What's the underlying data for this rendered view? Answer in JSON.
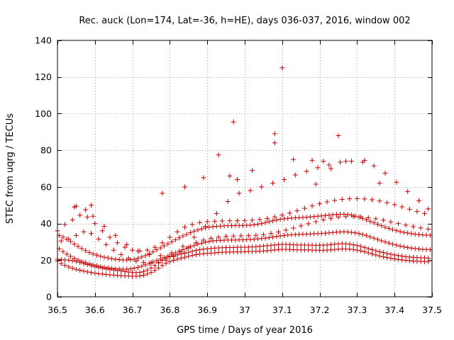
{
  "chart_data": {
    "type": "scatter",
    "title": "Rec. auck (Lon=174, Lat=-36, h=HE), days 036-037, 2016, window 002",
    "xlabel": "GPS time / Days of year 2016",
    "ylabel": "STEC from uqrg / TECUs",
    "xlim": [
      36.5,
      37.5
    ],
    "ylim": [
      0,
      140
    ],
    "xticks": [
      36.5,
      36.6,
      36.7,
      36.8,
      36.9,
      37.0,
      37.1,
      37.2,
      37.3,
      37.4,
      37.5
    ],
    "xtick_labels": [
      "36.5",
      "36.6",
      "36.7",
      "36.8",
      "36.9",
      "37",
      "37.1",
      "37.2",
      "37.3",
      "37.4",
      "37.5"
    ],
    "yticks": [
      0,
      20,
      40,
      60,
      80,
      100,
      120,
      140
    ],
    "ytick_labels": [
      "0",
      "20",
      "40",
      "60",
      "80",
      "100",
      "120",
      "140"
    ],
    "grid": true,
    "marker": "+",
    "color": "#cc0000",
    "series": [
      {
        "name": "STEC",
        "x": [
          36.5,
          36.51,
          36.52,
          36.53,
          36.54,
          36.55,
          36.56,
          36.57,
          36.58,
          36.59,
          36.6,
          36.61,
          36.62,
          36.63,
          36.64,
          36.65,
          36.66,
          36.67,
          36.68,
          36.69,
          36.7,
          36.71,
          36.72,
          36.73,
          36.74,
          36.75,
          36.76,
          36.77,
          36.78,
          36.79,
          36.8,
          36.81,
          36.82,
          36.83,
          36.84,
          36.85,
          36.86,
          36.87,
          36.88,
          36.89,
          36.9,
          36.91,
          36.92,
          36.93,
          36.94,
          36.95,
          36.96,
          36.97,
          36.98,
          36.99,
          36.5,
          36.51,
          36.52,
          36.53,
          36.54,
          36.55,
          36.56,
          36.57,
          36.58,
          36.59,
          36.6,
          36.61,
          36.62,
          36.63,
          36.64,
          36.65,
          36.66,
          36.67,
          36.68,
          36.69,
          36.7,
          36.71,
          36.72,
          36.73,
          36.74,
          36.75,
          36.76,
          36.77,
          36.78,
          36.79,
          36.8,
          36.81,
          36.82,
          36.83,
          36.84,
          36.85,
          36.86,
          36.87,
          36.88,
          36.89,
          36.9,
          36.91,
          36.92,
          36.93,
          36.94,
          36.95,
          36.96,
          36.97,
          36.98,
          36.99,
          36.505,
          36.515,
          36.525,
          36.535,
          36.545,
          36.555,
          36.565,
          36.575,
          36.585,
          36.595,
          36.605,
          36.615,
          36.625,
          36.635,
          36.645,
          36.655,
          36.665,
          36.675,
          36.685,
          36.695,
          36.705,
          36.715,
          36.725,
          36.735,
          36.745,
          36.755,
          36.765,
          36.775,
          36.785,
          36.795,
          36.805,
          36.815,
          36.825,
          36.835,
          36.845,
          36.855,
          36.865,
          36.875,
          36.885,
          36.895,
          36.905,
          36.915,
          36.925,
          36.935,
          36.945,
          36.955,
          36.965,
          36.975,
          36.985,
          36.995,
          36.505,
          36.515,
          36.525,
          36.535,
          36.545,
          36.555,
          36.565,
          36.575,
          36.585,
          36.595,
          36.605,
          36.615,
          36.625,
          36.635,
          36.645,
          36.655,
          36.665,
          36.675,
          36.685,
          36.695,
          36.705,
          36.715,
          36.725,
          36.735,
          36.745,
          36.755,
          36.765,
          36.775,
          36.785,
          36.795,
          36.805,
          36.815,
          36.825,
          36.835,
          36.845,
          36.855,
          36.865,
          36.875,
          36.885,
          36.895,
          36.905,
          36.915,
          36.925,
          36.935,
          36.945,
          36.955,
          36.965,
          36.975,
          36.985,
          36.995,
          36.5,
          36.52,
          36.54,
          36.56,
          36.58,
          36.6,
          36.62,
          36.64,
          36.66,
          36.68,
          36.7,
          36.72,
          36.74,
          36.76,
          36.78,
          36.8,
          36.82,
          36.84,
          36.86,
          36.88,
          36.9,
          36.92,
          36.94,
          36.96,
          36.98,
          36.51,
          36.53,
          36.55,
          36.57,
          36.59,
          36.61,
          36.63,
          36.65,
          36.67,
          36.69,
          36.71,
          36.73,
          36.75,
          36.77,
          36.79,
          36.81,
          36.83,
          36.85,
          36.87,
          36.89,
          36.91,
          36.93,
          36.95,
          36.97,
          36.99,
          36.545,
          36.575,
          36.595,
          36.625,
          36.655,
          36.685,
          36.715,
          36.745,
          36.775,
          36.805,
          36.835,
          36.865,
          36.895,
          36.925,
          36.955,
          36.985,
          36.55,
          36.59,
          36.78,
          36.84,
          36.89,
          36.93,
          36.96,
          36.97,
          36.98,
          37.0,
          37.01,
          37.02,
          37.03,
          37.04,
          37.05,
          37.06,
          37.07,
          37.08,
          37.09,
          37.1,
          37.11,
          37.12,
          37.13,
          37.14,
          37.15,
          37.16,
          37.17,
          37.18,
          37.19,
          37.2,
          37.21,
          37.22,
          37.23,
          37.24,
          37.25,
          37.26,
          37.27,
          37.28,
          37.29,
          37.3,
          37.31,
          37.32,
          37.33,
          37.34,
          37.35,
          37.36,
          37.37,
          37.38,
          37.39,
          37.4,
          37.41,
          37.42,
          37.43,
          37.44,
          37.45,
          37.46,
          37.47,
          37.48,
          37.49,
          37.0,
          37.01,
          37.02,
          37.03,
          37.04,
          37.05,
          37.06,
          37.07,
          37.08,
          37.09,
          37.1,
          37.11,
          37.12,
          37.13,
          37.14,
          37.15,
          37.16,
          37.17,
          37.18,
          37.19,
          37.2,
          37.21,
          37.22,
          37.23,
          37.24,
          37.25,
          37.26,
          37.27,
          37.28,
          37.29,
          37.3,
          37.31,
          37.32,
          37.33,
          37.34,
          37.35,
          37.36,
          37.37,
          37.38,
          37.39,
          37.4,
          37.41,
          37.42,
          37.43,
          37.44,
          37.45,
          37.46,
          37.47,
          37.48,
          37.49,
          37.005,
          37.015,
          37.025,
          37.035,
          37.045,
          37.055,
          37.065,
          37.075,
          37.085,
          37.095,
          37.105,
          37.115,
          37.125,
          37.135,
          37.145,
          37.155,
          37.165,
          37.175,
          37.185,
          37.195,
          37.205,
          37.215,
          37.225,
          37.235,
          37.245,
          37.255,
          37.265,
          37.275,
          37.285,
          37.295,
          37.305,
          37.315,
          37.325,
          37.335,
          37.345,
          37.355,
          37.365,
          37.375,
          37.385,
          37.395,
          37.405,
          37.415,
          37.425,
          37.435,
          37.445,
          37.455,
          37.465,
          37.475,
          37.485,
          37.495,
          37.005,
          37.015,
          37.025,
          37.035,
          37.045,
          37.055,
          37.065,
          37.075,
          37.085,
          37.095,
          37.105,
          37.115,
          37.125,
          37.135,
          37.145,
          37.155,
          37.165,
          37.175,
          37.185,
          37.195,
          37.205,
          37.215,
          37.225,
          37.235,
          37.245,
          37.255,
          37.265,
          37.275,
          37.285,
          37.295,
          37.305,
          37.315,
          37.325,
          37.335,
          37.345,
          37.355,
          37.365,
          37.375,
          37.385,
          37.395,
          37.405,
          37.415,
          37.425,
          37.435,
          37.445,
          37.455,
          37.465,
          37.475,
          37.485,
          37.495,
          37.0,
          37.02,
          37.04,
          37.06,
          37.08,
          37.1,
          37.12,
          37.14,
          37.16,
          37.18,
          37.2,
          37.22,
          37.24,
          37.26,
          37.28,
          37.3,
          37.32,
          37.34,
          37.36,
          37.38,
          37.4,
          37.42,
          37.44,
          37.46,
          37.48,
          37.01,
          37.03,
          37.05,
          37.07,
          37.09,
          37.11,
          37.13,
          37.15,
          37.17,
          37.19,
          37.21,
          37.23,
          37.25,
          37.27,
          37.29,
          37.31,
          37.33,
          37.35,
          37.37,
          37.39,
          37.41,
          37.43,
          37.45,
          37.47,
          37.49,
          37.015,
          37.045,
          37.075,
          37.105,
          37.135,
          37.165,
          37.195,
          37.225,
          37.255,
          37.285,
          37.315,
          37.345,
          37.375,
          37.405,
          37.435,
          37.465,
          37.02,
          37.08,
          37.08,
          37.1,
          37.13,
          37.18,
          37.19,
          37.21,
          37.23,
          37.25,
          37.27,
          37.32,
          37.36,
          37.49
        ],
        "y": [
          19.5,
          18.2,
          17.2,
          16.3,
          15.6,
          15.0,
          14.5,
          14.0,
          13.6,
          13.2,
          12.9,
          12.6,
          12.4,
          12.2,
          12.0,
          11.9,
          11.7,
          11.5,
          11.4,
          11.3,
          11.2,
          11.2,
          11.4,
          11.8,
          12.4,
          13.3,
          14.4,
          15.7,
          17.1,
          18.3,
          19.2,
          19.9,
          20.5,
          21.1,
          21.6,
          22.1,
          22.6,
          23.0,
          23.3,
          23.5,
          23.7,
          23.9,
          24.0,
          24.2,
          24.3,
          24.4,
          24.4,
          24.5,
          24.5,
          24.6,
          20.5,
          20.3,
          20.1,
          20.0,
          19.7,
          19.3,
          18.8,
          18.2,
          17.6,
          17.1,
          16.6,
          16.1,
          15.7,
          15.3,
          15.0,
          14.7,
          14.4,
          14.1,
          13.8,
          13.5,
          13.3,
          13.2,
          13.3,
          13.8,
          14.6,
          15.7,
          17.0,
          18.5,
          19.9,
          21.0,
          21.8,
          22.4,
          22.9,
          23.4,
          23.8,
          24.3,
          24.8,
          25.3,
          25.7,
          26.0,
          26.2,
          26.4,
          26.6,
          26.7,
          26.8,
          26.9,
          26.9,
          26.9,
          27.0,
          27.0,
          26.2,
          24.7,
          23.3,
          22.1,
          21.0,
          20.1,
          19.3,
          18.6,
          18.0,
          17.4,
          16.9,
          16.5,
          16.1,
          15.8,
          15.5,
          15.3,
          15.2,
          15.1,
          15.1,
          15.3,
          15.6,
          16.1,
          16.7,
          17.4,
          18.2,
          19.0,
          19.8,
          20.6,
          21.4,
          22.2,
          23.1,
          24.0,
          24.9,
          25.7,
          26.5,
          27.3,
          28.0,
          28.7,
          29.3,
          29.8,
          30.2,
          30.5,
          30.7,
          30.8,
          30.9,
          31.0,
          31.0,
          31.0,
          31.1,
          31.1,
          33.5,
          32.6,
          31.4,
          30.2,
          28.8,
          27.5,
          26.3,
          25.2,
          24.2,
          23.4,
          22.7,
          22.1,
          21.6,
          21.2,
          20.8,
          20.5,
          20.3,
          20.1,
          20.1,
          20.2,
          20.5,
          21.0,
          21.7,
          22.5,
          23.5,
          24.5,
          25.6,
          26.7,
          27.8,
          28.9,
          30.0,
          31.1,
          32.2,
          33.2,
          34.1,
          35.0,
          35.8,
          36.5,
          37.1,
          37.6,
          38.0,
          38.3,
          38.5,
          38.6,
          38.7,
          38.8,
          38.8,
          38.9,
          38.9,
          38.9,
          36.0,
          39.5,
          42.0,
          44.5,
          43.5,
          40.0,
          36.0,
          32.5,
          29.5,
          27.0,
          25.5,
          25.0,
          25.5,
          27.0,
          29.5,
          32.5,
          35.5,
          38.0,
          39.5,
          40.5,
          41.0,
          41.2,
          41.4,
          41.5,
          41.5,
          30.5,
          31.5,
          33.5,
          35.5,
          34.5,
          31.5,
          28.5,
          25.5,
          23.0,
          21.0,
          19.5,
          18.7,
          18.5,
          18.8,
          20.0,
          22.0,
          24.5,
          27.0,
          29.5,
          31.0,
          32.0,
          32.6,
          33.0,
          33.2,
          33.3,
          49.0,
          47.5,
          44.0,
          38.5,
          33.5,
          28.5,
          25.0,
          23.0,
          22.5,
          24.0,
          27.5,
          32.5,
          38.5,
          45.5,
          52.0,
          56.5,
          49.5,
          50.0,
          56.5,
          60.0,
          65.0,
          77.5,
          66.0,
          95.5,
          64.0,
          24.6,
          24.7,
          24.7,
          24.8,
          24.9,
          25.0,
          25.2,
          25.4,
          25.6,
          25.8,
          25.9,
          25.9,
          25.8,
          25.7,
          25.6,
          25.6,
          25.6,
          25.6,
          25.5,
          25.5,
          25.4,
          25.4,
          25.5,
          25.6,
          25.8,
          26.0,
          26.1,
          26.1,
          26.0,
          25.8,
          25.5,
          25.1,
          24.6,
          24.0,
          23.4,
          22.8,
          22.3,
          21.8,
          21.4,
          21.0,
          20.7,
          20.4,
          20.1,
          19.9,
          19.7,
          19.5,
          19.4,
          19.3,
          19.2,
          19.2,
          27.0,
          27.1,
          27.2,
          27.3,
          27.5,
          27.7,
          27.9,
          28.1,
          28.3,
          28.5,
          28.6,
          28.6,
          28.5,
          28.4,
          28.3,
          28.3,
          28.3,
          28.2,
          28.2,
          28.1,
          28.1,
          28.2,
          28.3,
          28.5,
          28.7,
          28.9,
          29.0,
          28.9,
          28.7,
          28.4,
          28.0,
          27.5,
          26.9,
          26.3,
          25.7,
          25.1,
          24.6,
          24.1,
          23.6,
          23.2,
          22.8,
          22.5,
          22.2,
          21.9,
          21.7,
          21.5,
          21.4,
          21.3,
          21.2,
          21.1,
          31.2,
          31.3,
          31.4,
          31.6,
          31.8,
          32.0,
          32.3,
          32.6,
          32.9,
          33.2,
          33.5,
          33.7,
          33.9,
          34.0,
          34.1,
          34.2,
          34.2,
          34.3,
          34.4,
          34.5,
          34.6,
          34.7,
          34.9,
          35.1,
          35.3,
          35.4,
          35.5,
          35.4,
          35.2,
          34.9,
          34.5,
          34.0,
          33.4,
          32.7,
          32.0,
          31.3,
          30.6,
          29.9,
          29.3,
          28.7,
          28.2,
          27.7,
          27.3,
          26.9,
          26.6,
          26.3,
          26.1,
          25.9,
          25.8,
          25.7,
          39.0,
          39.1,
          39.3,
          39.6,
          40.0,
          40.5,
          41.0,
          41.5,
          41.9,
          42.3,
          42.6,
          42.8,
          43.0,
          43.1,
          43.2,
          43.3,
          43.4,
          43.6,
          43.8,
          44.0,
          44.2,
          44.4,
          44.6,
          44.8,
          45.0,
          45.1,
          45.1,
          44.9,
          44.6,
          44.1,
          43.5,
          42.8,
          42.0,
          41.2,
          40.4,
          39.6,
          38.8,
          38.0,
          37.3,
          36.7,
          36.1,
          35.6,
          35.2,
          34.8,
          34.5,
          34.2,
          34.0,
          33.8,
          33.7,
          33.6,
          41.6,
          41.8,
          42.2,
          42.8,
          43.6,
          44.6,
          45.7,
          47.0,
          48.3,
          49.6,
          50.8,
          51.8,
          52.6,
          53.2,
          53.5,
          53.6,
          53.4,
          53.0,
          52.3,
          51.4,
          50.3,
          49.1,
          47.8,
          46.6,
          45.5,
          33.4,
          33.6,
          34.0,
          34.6,
          35.4,
          36.4,
          37.5,
          38.7,
          39.9,
          41.0,
          42.0,
          42.8,
          43.4,
          43.7,
          43.8,
          43.6,
          43.2,
          42.6,
          41.8,
          40.9,
          40.0,
          39.1,
          38.3,
          37.6,
          37.0,
          58.0,
          60.0,
          62.0,
          64.0,
          66.5,
          68.5,
          70.5,
          72.0,
          73.5,
          74.0,
          73.5,
          71.5,
          67.5,
          62.5,
          57.5,
          52.5,
          69.0,
          89.0,
          84.0,
          125.0,
          75.0,
          74.5,
          61.5,
          74.0,
          70.0,
          88.0,
          74.0,
          74.5,
          62.0,
          48.0
        ]
      }
    ]
  }
}
